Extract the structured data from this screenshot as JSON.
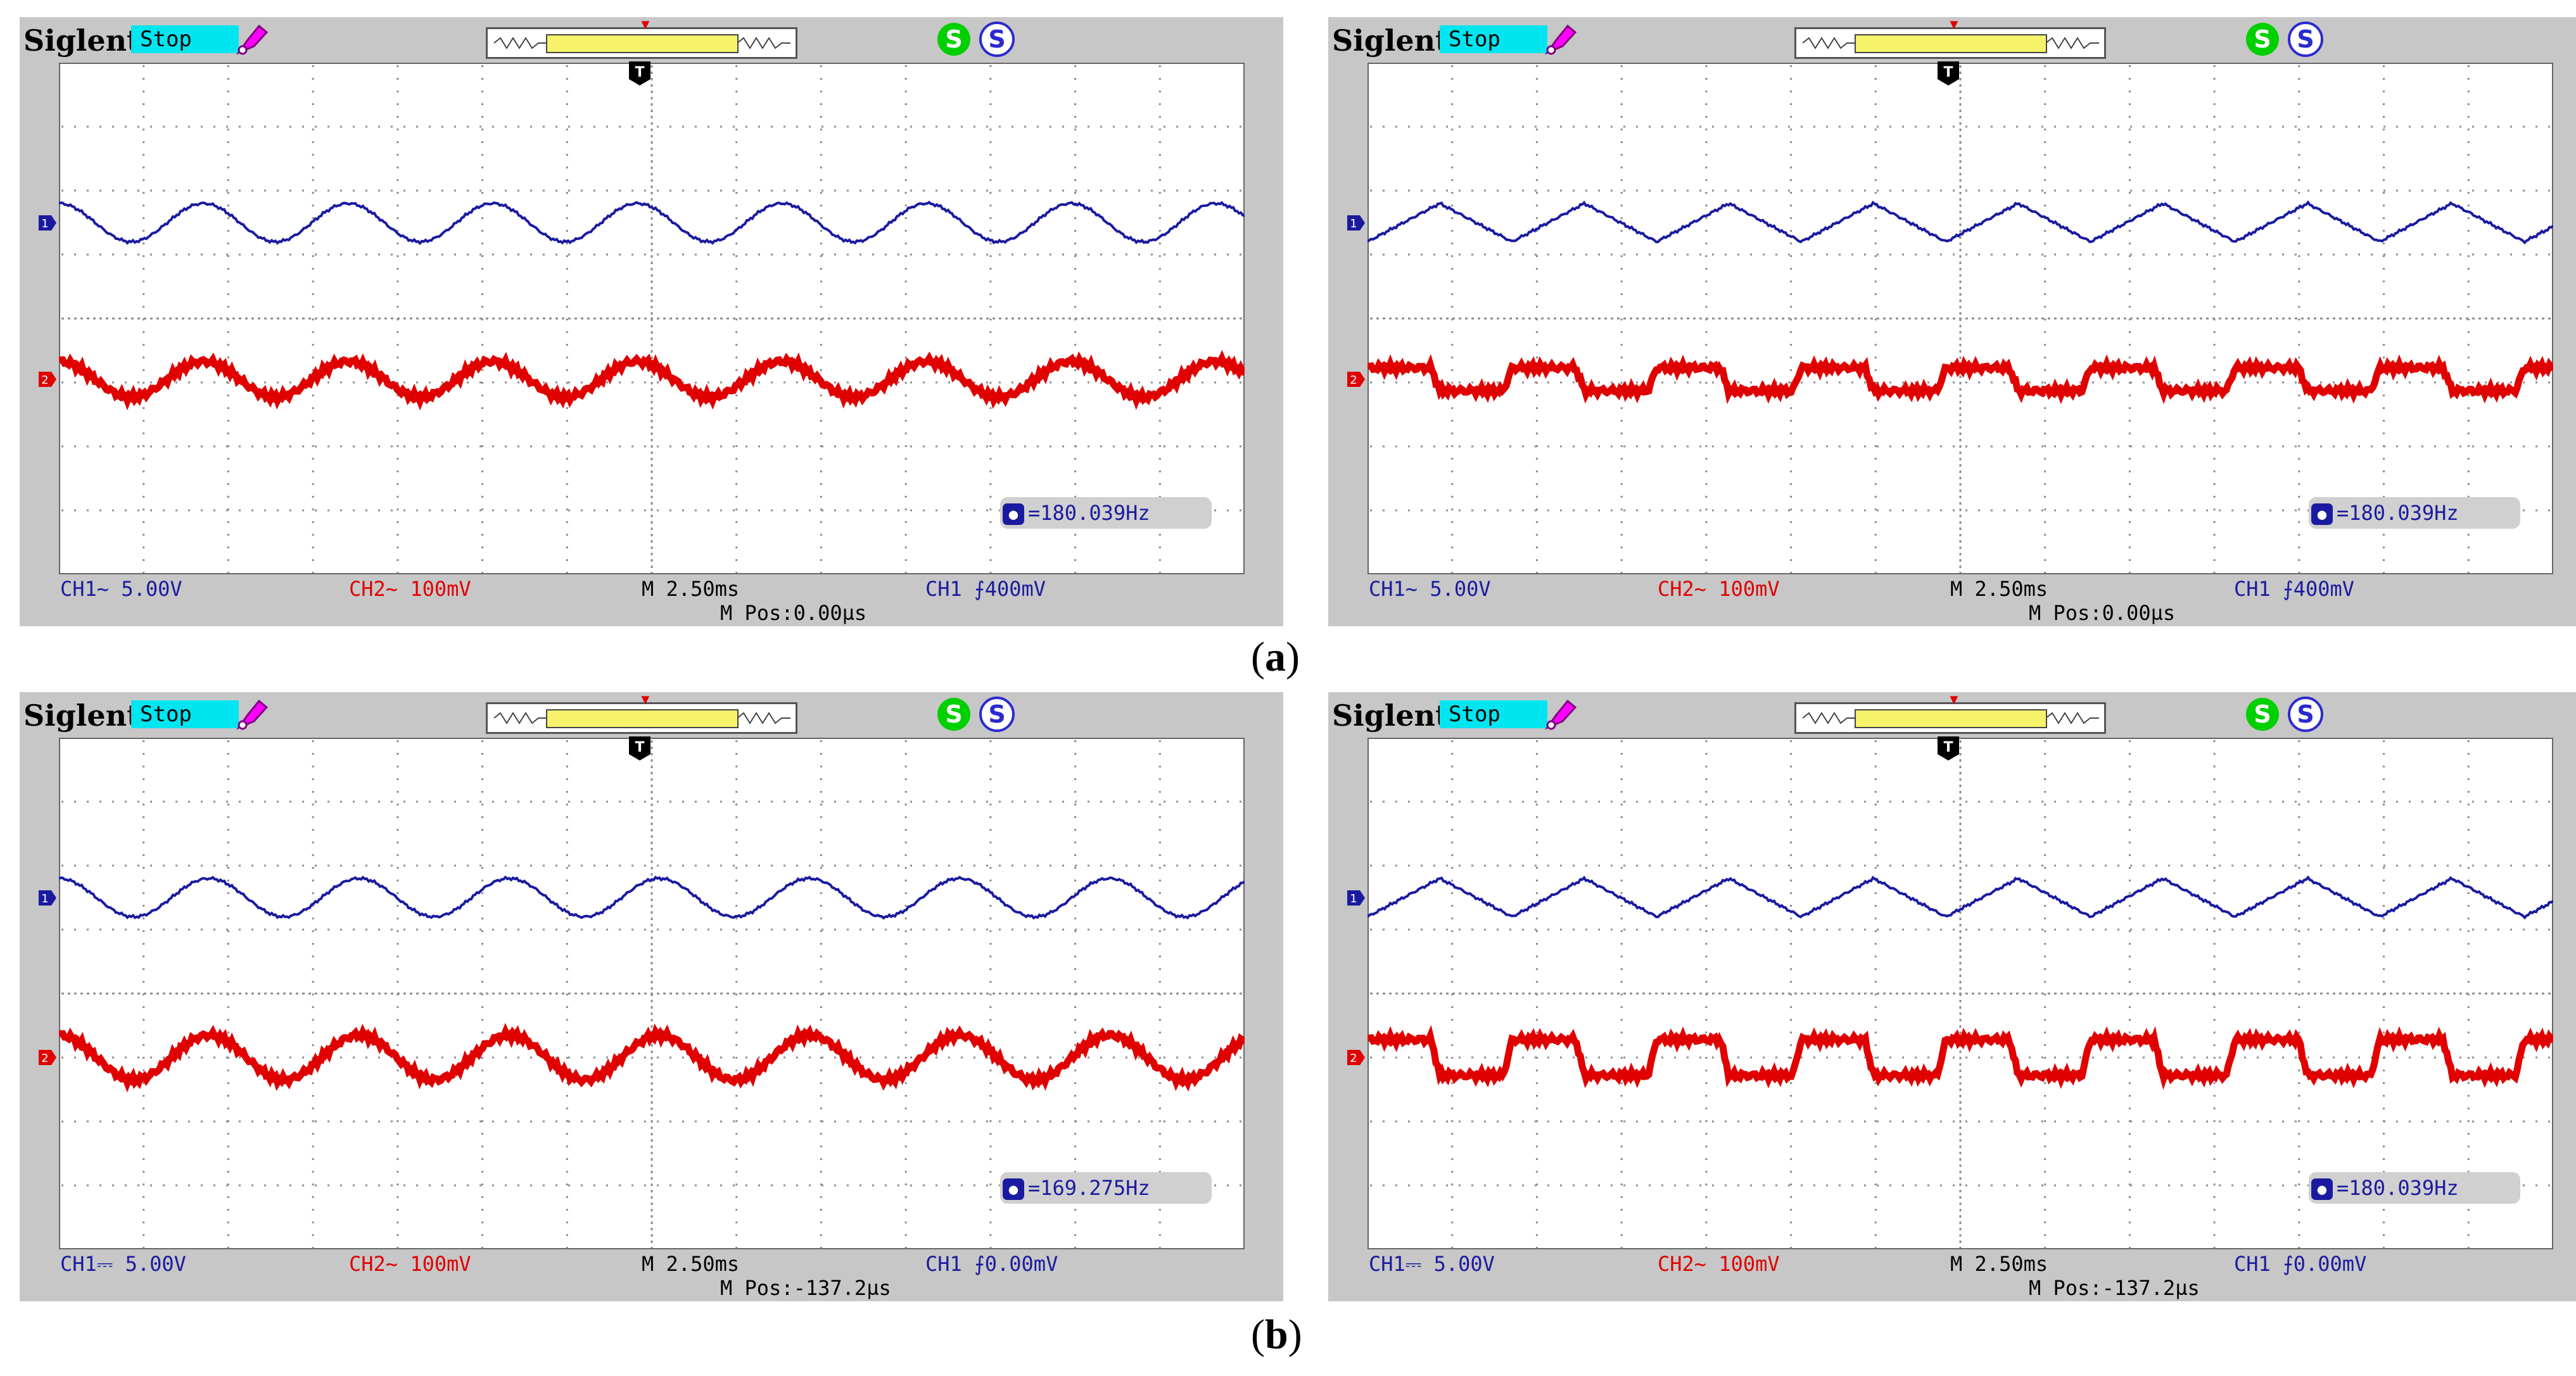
{
  "captions": {
    "a": "(a)",
    "b": "(b)"
  },
  "colors": {
    "ch1": "#1a1aa0",
    "ch2": "#e00000",
    "grid": "#8c8c8c",
    "stop_bg": "#00e6f0",
    "frame": "#c7c7c7"
  },
  "scopes": [
    {
      "brand": "Siglent",
      "run_state": "Stop",
      "ch1_marker": "1",
      "ch2_marker": "2",
      "freq": "=180.039Hz",
      "ch1": "CH1~ 5.00V",
      "ch2": "CH2~ 100mV",
      "timebase": "M 2.50ms",
      "trigger": "CH1 ⨍400mV",
      "mpos": "M Pos:0.00µs",
      "wave": {
        "ch1_shape": "sine",
        "ch2_shape": "sine",
        "ch1_level_div": 1.5,
        "ch1_amp_div": 0.3,
        "ch2_level_div": -0.95,
        "ch2_amp_div": 0.28,
        "cycles": 8.2
      }
    },
    {
      "brand": "Siglent",
      "run_state": "Stop",
      "ch1_marker": "1",
      "ch2_marker": "2",
      "freq": "=180.039Hz",
      "ch1": "CH1~ 5.00V",
      "ch2": "CH2~ 100mV",
      "timebase": "M 2.50ms",
      "trigger": "CH1 ⨍400mV",
      "mpos": "M Pos:0.00µs",
      "wave": {
        "ch1_shape": "triangle",
        "ch2_shape": "square",
        "ch1_level_div": 1.5,
        "ch1_amp_div": 0.3,
        "ch2_level_div": -0.95,
        "ch2_amp_div": 0.18,
        "cycles": 8.2
      }
    },
    {
      "brand": "Siglent",
      "run_state": "Stop",
      "ch1_marker": "1",
      "ch2_marker": "2",
      "freq": "=169.275Hz",
      "ch1": "CH1⎓ 5.00V",
      "ch2": "CH2~ 100mV",
      "timebase": "M 2.50ms",
      "trigger": "CH1 ⨍0.00mV",
      "mpos": "M Pos:-137.2µs",
      "wave": {
        "ch1_shape": "sine",
        "ch2_shape": "sine",
        "ch1_level_div": 1.5,
        "ch1_amp_div": 0.3,
        "ch2_level_div": -1.0,
        "ch2_amp_div": 0.35,
        "cycles": 7.9
      }
    },
    {
      "brand": "Siglent",
      "run_state": "Stop",
      "ch1_marker": "1",
      "ch2_marker": "2",
      "freq": "=180.039Hz",
      "ch1": "CH1⎓ 5.00V",
      "ch2": "CH2~ 100mV",
      "timebase": "M 2.50ms",
      "trigger": "CH1 ⨍0.00mV",
      "mpos": "M Pos:-137.2µs",
      "wave": {
        "ch1_shape": "triangle",
        "ch2_shape": "square",
        "ch1_level_div": 1.5,
        "ch1_amp_div": 0.3,
        "ch2_level_div": -1.0,
        "ch2_amp_div": 0.28,
        "cycles": 8.2
      }
    }
  ]
}
